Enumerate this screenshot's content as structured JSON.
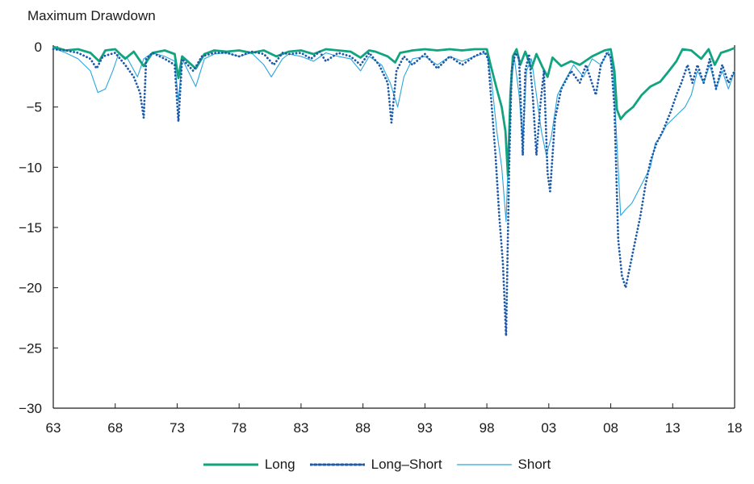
{
  "chart_data": {
    "type": "line",
    "title": "Maximum Drawdown",
    "xlabel": "",
    "ylabel": "",
    "x_tick_labels": [
      "63",
      "68",
      "73",
      "78",
      "83",
      "88",
      "93",
      "98",
      "03",
      "08",
      "13",
      "18"
    ],
    "x_tick_years": [
      1963,
      1968,
      1973,
      1978,
      1983,
      1988,
      1993,
      1998,
      2003,
      2008,
      2013,
      2018
    ],
    "xlim": [
      1963,
      2018
    ],
    "y_ticks": [
      0,
      -5,
      -10,
      -15,
      -20,
      -25,
      -30
    ],
    "ylim": [
      -30,
      0
    ],
    "grid": false,
    "legend_position": "bottom",
    "colors": {
      "Long": "#12a37f",
      "Long–Short": "#1e5aa8",
      "Short": "#2aa6de"
    },
    "series": [
      {
        "name": "Long",
        "style": "solid-thick",
        "points": [
          [
            1963,
            0
          ],
          [
            1964,
            -0.3
          ],
          [
            1965,
            -0.2
          ],
          [
            1966,
            -0.5
          ],
          [
            1966.7,
            -1.2
          ],
          [
            1967.2,
            -0.3
          ],
          [
            1968,
            -0.2
          ],
          [
            1968.8,
            -1
          ],
          [
            1969.5,
            -0.4
          ],
          [
            1970.3,
            -1.6
          ],
          [
            1971,
            -0.5
          ],
          [
            1972,
            -0.3
          ],
          [
            1972.8,
            -0.6
          ],
          [
            1973.1,
            -2.6
          ],
          [
            1973.4,
            -0.8
          ],
          [
            1974.5,
            -1.8
          ],
          [
            1975.2,
            -0.6
          ],
          [
            1976,
            -0.3
          ],
          [
            1977,
            -0.4
          ],
          [
            1978,
            -0.3
          ],
          [
            1979,
            -0.5
          ],
          [
            1980,
            -0.3
          ],
          [
            1981,
            -0.8
          ],
          [
            1982,
            -0.4
          ],
          [
            1983,
            -0.3
          ],
          [
            1984,
            -0.6
          ],
          [
            1985,
            -0.2
          ],
          [
            1986,
            -0.3
          ],
          [
            1987,
            -0.4
          ],
          [
            1987.8,
            -0.9
          ],
          [
            1988.5,
            -0.3
          ],
          [
            1989,
            -0.4
          ],
          [
            1990,
            -0.8
          ],
          [
            1990.6,
            -1.3
          ],
          [
            1991,
            -0.5
          ],
          [
            1992,
            -0.3
          ],
          [
            1993,
            -0.2
          ],
          [
            1994,
            -0.3
          ],
          [
            1995,
            -0.2
          ],
          [
            1996,
            -0.3
          ],
          [
            1997,
            -0.2
          ],
          [
            1998,
            -0.2
          ],
          [
            1998.3,
            -1.5
          ],
          [
            1998.8,
            -3.5
          ],
          [
            1999.2,
            -5
          ],
          [
            1999.5,
            -7
          ],
          [
            1999.7,
            -10.7
          ],
          [
            1999.9,
            -4
          ],
          [
            2000.1,
            -0.8
          ],
          [
            2000.4,
            -0.2
          ],
          [
            2000.7,
            -1.5
          ],
          [
            2001.1,
            -0.4
          ],
          [
            2001.6,
            -1.8
          ],
          [
            2002,
            -0.6
          ],
          [
            2002.5,
            -1.7
          ],
          [
            2002.9,
            -2.5
          ],
          [
            2003.3,
            -0.9
          ],
          [
            2004,
            -1.6
          ],
          [
            2004.8,
            -1.2
          ],
          [
            2005.5,
            -1.5
          ],
          [
            2006.5,
            -0.8
          ],
          [
            2007.5,
            -0.3
          ],
          [
            2008,
            -0.2
          ],
          [
            2008.3,
            -2
          ],
          [
            2008.5,
            -5.2
          ],
          [
            2008.8,
            -6
          ],
          [
            2009.2,
            -5.5
          ],
          [
            2009.8,
            -5
          ],
          [
            2010.5,
            -4
          ],
          [
            2011.2,
            -3.3
          ],
          [
            2012,
            -2.9
          ],
          [
            2012.7,
            -2
          ],
          [
            2013.3,
            -1.2
          ],
          [
            2013.8,
            -0.2
          ],
          [
            2014.5,
            -0.3
          ],
          [
            2015.3,
            -1
          ],
          [
            2015.9,
            -0.2
          ],
          [
            2016.4,
            -1.5
          ],
          [
            2016.9,
            -0.5
          ],
          [
            2017.5,
            -0.3
          ],
          [
            2018,
            -0.1
          ]
        ]
      },
      {
        "name": "Long–Short",
        "style": "dotted",
        "points": [
          [
            1963,
            -0.2
          ],
          [
            1964,
            -0.3
          ],
          [
            1965,
            -0.5
          ],
          [
            1966,
            -1
          ],
          [
            1966.5,
            -1.8
          ],
          [
            1967,
            -0.8
          ],
          [
            1968,
            -0.5
          ],
          [
            1968.8,
            -1.5
          ],
          [
            1969.5,
            -2.5
          ],
          [
            1970,
            -3.8
          ],
          [
            1970.3,
            -5.9
          ],
          [
            1970.5,
            -1
          ],
          [
            1971,
            -0.5
          ],
          [
            1972,
            -1
          ],
          [
            1972.8,
            -1.5
          ],
          [
            1973.1,
            -6.2
          ],
          [
            1973.4,
            -1
          ],
          [
            1974.3,
            -2
          ],
          [
            1975,
            -0.8
          ],
          [
            1976,
            -0.5
          ],
          [
            1977,
            -0.5
          ],
          [
            1978,
            -0.8
          ],
          [
            1979,
            -0.4
          ],
          [
            1980,
            -0.6
          ],
          [
            1980.8,
            -1.5
          ],
          [
            1981.5,
            -0.5
          ],
          [
            1982,
            -0.6
          ],
          [
            1983,
            -0.5
          ],
          [
            1983.8,
            -1
          ],
          [
            1984.5,
            -0.4
          ],
          [
            1985,
            -1.2
          ],
          [
            1986,
            -0.5
          ],
          [
            1987,
            -0.8
          ],
          [
            1987.8,
            -1.5
          ],
          [
            1988.5,
            -0.5
          ],
          [
            1989.3,
            -1.5
          ],
          [
            1990,
            -3
          ],
          [
            1990.3,
            -6.3
          ],
          [
            1990.7,
            -2
          ],
          [
            1991.3,
            -0.8
          ],
          [
            1992,
            -1.5
          ],
          [
            1993,
            -0.6
          ],
          [
            1994,
            -1.8
          ],
          [
            1995,
            -0.8
          ],
          [
            1996,
            -1.5
          ],
          [
            1997,
            -0.8
          ],
          [
            1997.8,
            -0.4
          ],
          [
            1998.1,
            -1
          ],
          [
            1998.4,
            -5
          ],
          [
            1998.7,
            -9
          ],
          [
            1999,
            -14
          ],
          [
            1999.3,
            -18
          ],
          [
            1999.55,
            -24
          ],
          [
            1999.8,
            -10
          ],
          [
            2000,
            -2
          ],
          [
            2000.3,
            -0.5
          ],
          [
            2000.6,
            -1
          ],
          [
            2000.9,
            -9
          ],
          [
            2001.1,
            -2
          ],
          [
            2001.4,
            -0.6
          ],
          [
            2001.7,
            -4
          ],
          [
            2002,
            -9
          ],
          [
            2002.3,
            -5
          ],
          [
            2002.6,
            -2
          ],
          [
            2002.9,
            -10.5
          ],
          [
            2003.1,
            -12
          ],
          [
            2003.5,
            -6
          ],
          [
            2004,
            -3.5
          ],
          [
            2004.8,
            -2
          ],
          [
            2005.5,
            -3
          ],
          [
            2006,
            -1.5
          ],
          [
            2006.8,
            -4
          ],
          [
            2007.2,
            -1.5
          ],
          [
            2007.7,
            -0.5
          ],
          [
            2008,
            -0.8
          ],
          [
            2008.3,
            -5
          ],
          [
            2008.6,
            -16
          ],
          [
            2008.9,
            -19
          ],
          [
            2009.2,
            -20
          ],
          [
            2009.6,
            -18
          ],
          [
            2010,
            -16
          ],
          [
            2010.4,
            -14
          ],
          [
            2010.8,
            -11.5
          ],
          [
            2011.2,
            -9.5
          ],
          [
            2011.7,
            -8
          ],
          [
            2012.2,
            -7
          ],
          [
            2012.8,
            -5.5
          ],
          [
            2013.3,
            -4
          ],
          [
            2013.7,
            -3
          ],
          [
            2014.2,
            -1.5
          ],
          [
            2014.6,
            -3
          ],
          [
            2015,
            -1.5
          ],
          [
            2015.5,
            -3
          ],
          [
            2016,
            -1
          ],
          [
            2016.5,
            -3.5
          ],
          [
            2017,
            -1.5
          ],
          [
            2017.5,
            -3
          ],
          [
            2018,
            -2
          ]
        ]
      },
      {
        "name": "Short",
        "style": "solid-thin",
        "points": [
          [
            1963,
            -0.1
          ],
          [
            1964,
            -0.5
          ],
          [
            1965,
            -1
          ],
          [
            1966,
            -2
          ],
          [
            1966.6,
            -3.8
          ],
          [
            1967.2,
            -3.5
          ],
          [
            1967.8,
            -2
          ],
          [
            1968.3,
            -0.5
          ],
          [
            1969,
            -1
          ],
          [
            1969.8,
            -2.5
          ],
          [
            1970.3,
            -1
          ],
          [
            1971,
            -0.5
          ],
          [
            1972,
            -0.8
          ],
          [
            1972.8,
            -1.2
          ],
          [
            1973.1,
            -4.5
          ],
          [
            1973.4,
            -1
          ],
          [
            1974.5,
            -3.3
          ],
          [
            1975.2,
            -1
          ],
          [
            1976,
            -0.6
          ],
          [
            1977,
            -0.5
          ],
          [
            1978,
            -0.8
          ],
          [
            1979,
            -0.5
          ],
          [
            1980,
            -1.5
          ],
          [
            1980.6,
            -2.5
          ],
          [
            1981.5,
            -1
          ],
          [
            1982,
            -0.6
          ],
          [
            1983,
            -0.8
          ],
          [
            1984,
            -1.2
          ],
          [
            1985,
            -0.5
          ],
          [
            1986,
            -0.8
          ],
          [
            1987,
            -1
          ],
          [
            1987.8,
            -2
          ],
          [
            1988.5,
            -0.8
          ],
          [
            1989.5,
            -1.5
          ],
          [
            1990.2,
            -3
          ],
          [
            1990.8,
            -5
          ],
          [
            1991.3,
            -2.5
          ],
          [
            1992,
            -1
          ],
          [
            1993,
            -0.8
          ],
          [
            1994,
            -1.5
          ],
          [
            1995,
            -0.8
          ],
          [
            1996,
            -1.2
          ],
          [
            1997,
            -0.8
          ],
          [
            1998,
            -0.5
          ],
          [
            1998.4,
            -3
          ],
          [
            1998.8,
            -7
          ],
          [
            1999.2,
            -10
          ],
          [
            1999.55,
            -14.5
          ],
          [
            1999.9,
            -4
          ],
          [
            2000.2,
            -0.8
          ],
          [
            2000.6,
            -4
          ],
          [
            2000.9,
            -8
          ],
          [
            2001.2,
            -2
          ],
          [
            2001.6,
            -1
          ],
          [
            2002,
            -4
          ],
          [
            2002.4,
            -7
          ],
          [
            2002.8,
            -9
          ],
          [
            2003.2,
            -7.5
          ],
          [
            2003.7,
            -4
          ],
          [
            2004.2,
            -3
          ],
          [
            2005,
            -1.5
          ],
          [
            2005.8,
            -2.5
          ],
          [
            2006.5,
            -1
          ],
          [
            2007.2,
            -1.5
          ],
          [
            2007.8,
            -0.4
          ],
          [
            2008.2,
            -2
          ],
          [
            2008.5,
            -8
          ],
          [
            2008.8,
            -14
          ],
          [
            2009.2,
            -13.5
          ],
          [
            2009.7,
            -13
          ],
          [
            2010.2,
            -12
          ],
          [
            2010.7,
            -11
          ],
          [
            2011.2,
            -10
          ],
          [
            2011.6,
            -8
          ],
          [
            2012,
            -7.5
          ],
          [
            2012.5,
            -6.5
          ],
          [
            2013,
            -6
          ],
          [
            2013.5,
            -5.5
          ],
          [
            2014,
            -5
          ],
          [
            2014.5,
            -4
          ],
          [
            2015,
            -2
          ],
          [
            2015.5,
            -3
          ],
          [
            2016,
            -1.5
          ],
          [
            2016.5,
            -3.5
          ],
          [
            2017,
            -2
          ],
          [
            2017.5,
            -3.5
          ],
          [
            2018,
            -2
          ]
        ]
      }
    ]
  },
  "legend": {
    "items": [
      {
        "label": "Long",
        "key": "Long"
      },
      {
        "label": "Long–Short",
        "key": "Long–Short"
      },
      {
        "label": "Short",
        "key": "Short"
      }
    ]
  }
}
